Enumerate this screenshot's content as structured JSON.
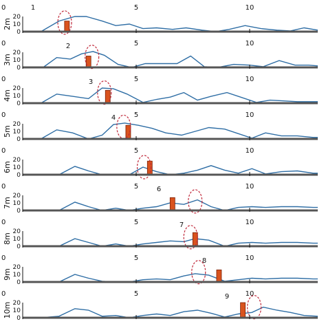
{
  "chart_data": {
    "type": "line",
    "description_units": "each panel is one row; x = position 0..13, y = value 0..20",
    "x_tick_labels": [
      "0",
      "5",
      "10"
    ],
    "x_ticks_visible": [
      0,
      5,
      10
    ],
    "ylim": [
      0,
      20
    ],
    "y_ticks": [
      0,
      10,
      20
    ],
    "colors": {
      "line": "#2f6ea5",
      "bar": "#d9531e",
      "bar_edge": "#7a1f05",
      "circle": "#c0283a",
      "axis": "#111111",
      "row_sep": "#555555"
    },
    "panels": [
      {
        "ylabel": "2m",
        "marker_label": "1",
        "marker_x": 1,
        "y_tick_labels": [
          "20",
          "10",
          "0"
        ],
        "line": [
          [
            0,
            0
          ],
          [
            0.8,
            0
          ],
          [
            1.6,
            14
          ],
          [
            2.3,
            20
          ],
          [
            2.8,
            20
          ],
          [
            3.5,
            14
          ],
          [
            4.1,
            8
          ],
          [
            4.7,
            10
          ],
          [
            5.3,
            4
          ],
          [
            5.9,
            5
          ],
          [
            6.6,
            3
          ],
          [
            7.2,
            5
          ],
          [
            7.9,
            2
          ],
          [
            8.5,
            0
          ],
          [
            9.1,
            3
          ],
          [
            9.8,
            8
          ],
          [
            10.5,
            4
          ],
          [
            11.2,
            2
          ],
          [
            11.8,
            1
          ],
          [
            12.4,
            5
          ],
          [
            13.0,
            2
          ]
        ],
        "bar": {
          "x": 1.95,
          "value": 14
        },
        "circle": {
          "x": 1.85,
          "y": 12
        }
      },
      {
        "ylabel": "3m",
        "marker_label": "2",
        "marker_x": 2,
        "y_tick_labels": [
          "20",
          "10",
          "0"
        ],
        "line": [
          [
            0,
            0
          ],
          [
            0.9,
            0
          ],
          [
            1.5,
            13
          ],
          [
            2.1,
            11
          ],
          [
            2.6,
            18
          ],
          [
            3.1,
            21
          ],
          [
            3.6,
            16
          ],
          [
            4.2,
            4
          ],
          [
            4.8,
            0
          ],
          [
            5.4,
            5
          ],
          [
            6.1,
            5
          ],
          [
            6.8,
            5
          ],
          [
            7.4,
            15
          ],
          [
            8.0,
            1
          ],
          [
            8.6,
            0
          ],
          [
            9.3,
            4
          ],
          [
            10.0,
            3
          ],
          [
            10.6,
            1
          ],
          [
            11.3,
            9
          ],
          [
            12.0,
            3
          ],
          [
            12.6,
            3
          ],
          [
            13.0,
            2
          ]
        ],
        "bar": {
          "x": 2.9,
          "value": 15
        },
        "circle": {
          "x": 3.05,
          "y": 14
        }
      },
      {
        "ylabel": "4m",
        "marker_label": "3",
        "marker_x": 3,
        "y_tick_labels": [
          "20",
          "10",
          "0"
        ],
        "line": [
          [
            0,
            0
          ],
          [
            0.8,
            0
          ],
          [
            1.5,
            12
          ],
          [
            2.2,
            9
          ],
          [
            2.9,
            6
          ],
          [
            3.5,
            20
          ],
          [
            4.0,
            19
          ],
          [
            4.6,
            12
          ],
          [
            5.3,
            1
          ],
          [
            5.9,
            5
          ],
          [
            6.5,
            8
          ],
          [
            7.1,
            14
          ],
          [
            7.7,
            4
          ],
          [
            8.3,
            9
          ],
          [
            9.0,
            14
          ],
          [
            9.6,
            8
          ],
          [
            10.3,
            1
          ],
          [
            10.9,
            4
          ],
          [
            11.5,
            3
          ],
          [
            12.1,
            2
          ],
          [
            12.8,
            2
          ],
          [
            13.0,
            2
          ]
        ],
        "bar": {
          "x": 3.75,
          "value": 17
        },
        "circle": {
          "x": 3.6,
          "y": 14
        }
      },
      {
        "ylabel": "5m",
        "marker_label": "4",
        "marker_x": 4,
        "y_tick_labels": [
          "20",
          "10",
          "0"
        ],
        "line": [
          [
            0,
            0
          ],
          [
            0.8,
            0
          ],
          [
            1.5,
            12
          ],
          [
            2.2,
            8
          ],
          [
            2.9,
            0
          ],
          [
            3.5,
            5
          ],
          [
            4.0,
            19
          ],
          [
            4.5,
            21
          ],
          [
            5.1,
            18
          ],
          [
            5.7,
            14
          ],
          [
            6.3,
            8
          ],
          [
            7.0,
            5
          ],
          [
            7.6,
            10
          ],
          [
            8.2,
            15
          ],
          [
            8.9,
            13
          ],
          [
            9.5,
            7
          ],
          [
            10.1,
            1
          ],
          [
            10.7,
            8
          ],
          [
            11.4,
            4
          ],
          [
            12.1,
            4
          ],
          [
            12.8,
            2
          ],
          [
            13.0,
            2
          ]
        ],
        "bar": {
          "x": 4.65,
          "value": 18
        },
        "circle": {
          "x": 4.45,
          "y": 16
        }
      },
      {
        "ylabel": "6m",
        "marker_label": "",
        "marker_x": 5,
        "y_tick_labels": [
          "20",
          "10",
          "0"
        ],
        "line": [
          [
            0,
            0
          ],
          [
            0.8,
            0
          ],
          [
            1.6,
            0
          ],
          [
            2.3,
            11
          ],
          [
            2.9,
            5
          ],
          [
            3.5,
            0
          ],
          [
            4.1,
            0
          ],
          [
            4.7,
            0
          ],
          [
            5.3,
            10
          ],
          [
            5.9,
            4
          ],
          [
            6.5,
            0
          ],
          [
            7.1,
            2
          ],
          [
            7.7,
            6
          ],
          [
            8.3,
            12
          ],
          [
            8.9,
            6
          ],
          [
            9.5,
            2
          ],
          [
            10.1,
            8
          ],
          [
            10.7,
            1
          ],
          [
            11.4,
            4
          ],
          [
            12.1,
            5
          ],
          [
            12.8,
            2
          ],
          [
            13.0,
            2
          ]
        ],
        "bar": {
          "x": 5.6,
          "value": 18
        },
        "circle": {
          "x": 5.35,
          "y": 10
        }
      },
      {
        "ylabel": "7m",
        "marker_label": "6",
        "marker_x": 6,
        "y_tick_labels": [
          "20",
          "10",
          "0"
        ],
        "line": [
          [
            0,
            0
          ],
          [
            0.8,
            0
          ],
          [
            1.6,
            0
          ],
          [
            2.3,
            11
          ],
          [
            2.9,
            5
          ],
          [
            3.5,
            0
          ],
          [
            4.1,
            3
          ],
          [
            4.7,
            0
          ],
          [
            5.3,
            3
          ],
          [
            5.9,
            5
          ],
          [
            6.5,
            10
          ],
          [
            7.1,
            8
          ],
          [
            7.7,
            14
          ],
          [
            8.3,
            5
          ],
          [
            8.9,
            0
          ],
          [
            9.5,
            4
          ],
          [
            10.1,
            5
          ],
          [
            10.7,
            4
          ],
          [
            11.4,
            5
          ],
          [
            12.1,
            5
          ],
          [
            12.8,
            4
          ],
          [
            13.0,
            4
          ]
        ],
        "bar": {
          "x": 6.6,
          "value": 17
        },
        "circle": {
          "x": 7.6,
          "y": 12
        }
      },
      {
        "ylabel": "8m",
        "marker_label": "7",
        "marker_x": 7,
        "y_tick_labels": [
          "20",
          "10",
          "0"
        ],
        "line": [
          [
            0,
            0
          ],
          [
            0.8,
            0
          ],
          [
            1.6,
            0
          ],
          [
            2.3,
            10
          ],
          [
            2.9,
            5
          ],
          [
            3.5,
            0
          ],
          [
            4.1,
            3
          ],
          [
            4.7,
            0
          ],
          [
            5.3,
            3
          ],
          [
            5.9,
            5
          ],
          [
            6.5,
            7
          ],
          [
            7.1,
            6
          ],
          [
            7.6,
            10
          ],
          [
            8.2,
            8
          ],
          [
            8.9,
            0
          ],
          [
            9.5,
            4
          ],
          [
            10.1,
            5
          ],
          [
            10.7,
            4
          ],
          [
            11.4,
            5
          ],
          [
            12.1,
            5
          ],
          [
            12.8,
            4
          ],
          [
            13.0,
            4
          ]
        ],
        "bar": {
          "x": 7.6,
          "value": 18
        },
        "circle": {
          "x": 7.4,
          "y": 12
        }
      },
      {
        "ylabel": "9m",
        "marker_label": "8",
        "marker_x": 8,
        "y_tick_labels": [
          "20",
          "10",
          "0"
        ],
        "line": [
          [
            0,
            0
          ],
          [
            0.8,
            0
          ],
          [
            1.6,
            0
          ],
          [
            2.3,
            10
          ],
          [
            2.9,
            5
          ],
          [
            3.5,
            1
          ],
          [
            4.1,
            0
          ],
          [
            4.7,
            0
          ],
          [
            5.3,
            3
          ],
          [
            5.9,
            4
          ],
          [
            6.5,
            3
          ],
          [
            7.1,
            8
          ],
          [
            7.6,
            11
          ],
          [
            8.2,
            9
          ],
          [
            8.9,
            1
          ],
          [
            9.5,
            3
          ],
          [
            10.1,
            5
          ],
          [
            10.7,
            4
          ],
          [
            11.4,
            5
          ],
          [
            12.1,
            5
          ],
          [
            12.8,
            4
          ],
          [
            13.0,
            4
          ]
        ],
        "bar": {
          "x": 8.65,
          "value": 16
        },
        "circle": {
          "x": 7.75,
          "y": 13
        }
      },
      {
        "ylabel": "10m",
        "marker_label": "9",
        "marker_x": 9,
        "y_tick_labels": [
          "20",
          "10",
          "0"
        ],
        "line": [
          [
            0,
            0
          ],
          [
            0.8,
            0
          ],
          [
            1.6,
            2
          ],
          [
            2.3,
            12
          ],
          [
            2.9,
            10
          ],
          [
            3.5,
            2
          ],
          [
            4.1,
            3
          ],
          [
            4.7,
            0
          ],
          [
            5.3,
            3
          ],
          [
            5.9,
            5
          ],
          [
            6.5,
            3
          ],
          [
            7.1,
            8
          ],
          [
            7.7,
            10
          ],
          [
            8.3,
            6
          ],
          [
            8.9,
            1
          ],
          [
            9.5,
            5
          ],
          [
            10.1,
            7
          ],
          [
            10.6,
            14
          ],
          [
            11.2,
            10
          ],
          [
            11.8,
            7
          ],
          [
            12.4,
            3
          ],
          [
            13.0,
            2
          ]
        ],
        "bar": {
          "x": 9.7,
          "value": 20
        },
        "circle": {
          "x": 10.2,
          "y": 14
        }
      }
    ]
  }
}
